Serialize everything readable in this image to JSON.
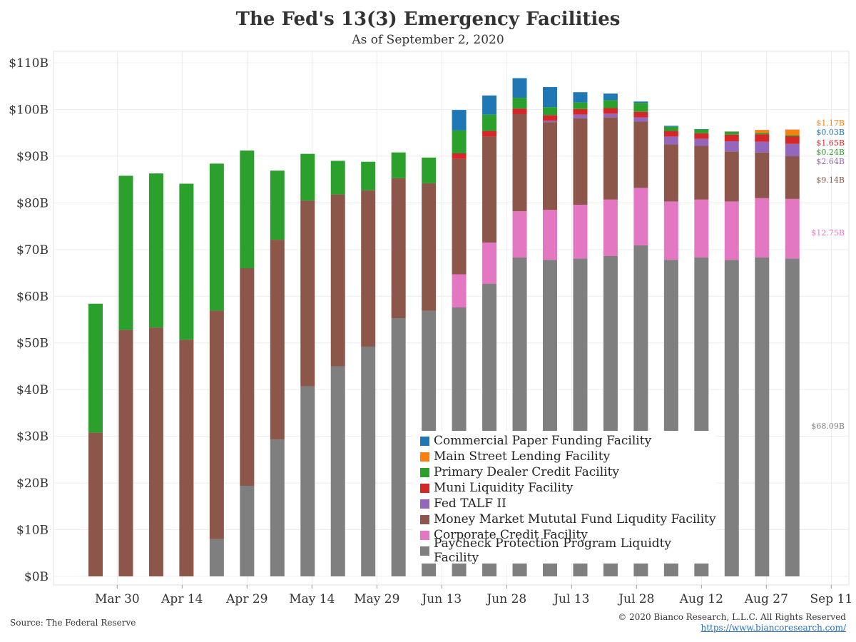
{
  "title": "The Fed's 13(3) Emergency Facilities",
  "subtitle": "As of September 2, 2020",
  "source": "Source: The Federal Reserve",
  "copyright": "© 2020 Bianco Research, L.L.C. All Rights Reserved",
  "url": "https://www.biancoresearch.com/",
  "chart_data": {
    "type": "bar",
    "stacked": true,
    "title": "The Fed's 13(3) Emergency Facilities",
    "subtitle": "As of September 2, 2020",
    "xlabel": "",
    "ylabel": "",
    "ylim": [
      0,
      110
    ],
    "y_ticks": [
      "$0B",
      "$10B",
      "$20B",
      "$30B",
      "$40B",
      "$50B",
      "$60B",
      "$70B",
      "$80B",
      "$90B",
      "$100B",
      "$110B"
    ],
    "x_ticks": [
      "Mar 30",
      "Apr 14",
      "Apr 29",
      "May 14",
      "May 29",
      "Jun 13",
      "Jun 28",
      "Jul 13",
      "Jul 28",
      "Aug 12",
      "Aug 27",
      "Sep 11"
    ],
    "grid": true,
    "legend_position": "bottom-right",
    "categories": [
      "Mar 25",
      "Apr 1",
      "Apr 8",
      "Apr 15",
      "Apr 22",
      "Apr 29",
      "May 6",
      "May 13",
      "May 20",
      "May 27",
      "Jun 3",
      "Jun 10",
      "Jun 17",
      "Jun 24",
      "Jul 1",
      "Jul 8",
      "Jul 15",
      "Jul 22",
      "Jul 29",
      "Aug 5",
      "Aug 12",
      "Aug 19",
      "Aug 26",
      "Sep 2"
    ],
    "series": [
      {
        "name": "Paycheck Protection Program Liquidty Facility",
        "color": "#7f7f7f",
        "values": [
          0,
          0,
          0,
          0,
          8,
          19.4,
          29.3,
          40.7,
          45,
          49.2,
          55.3,
          56.9,
          57.6,
          62.7,
          68.3,
          67.8,
          68.1,
          68.6,
          70.9,
          67.8,
          68.3,
          67.8,
          68.3,
          68.09
        ]
      },
      {
        "name": "Corporate Credit Facility",
        "color": "#e377c2",
        "values": [
          0,
          0,
          0,
          0,
          0,
          0,
          0,
          0,
          0,
          0,
          0,
          0,
          7.1,
          8.8,
          9.9,
          10.7,
          11.5,
          12.1,
          12.3,
          12.5,
          12.4,
          12.5,
          12.7,
          12.75
        ]
      },
      {
        "name": "Money Market Mututal Fund Liqudity Facility",
        "color": "#8c564b",
        "values": [
          30.8,
          52.8,
          53.3,
          50.7,
          48.9,
          46.6,
          42.8,
          39.8,
          36.8,
          33.5,
          30,
          27.3,
          24.7,
          22.7,
          20.8,
          18.8,
          18.5,
          17.6,
          14.2,
          12.2,
          11.5,
          10.7,
          9.8,
          9.14
        ]
      },
      {
        "name": "Fed TALF II",
        "color": "#9467bd",
        "values": [
          0,
          0,
          0,
          0,
          0,
          0,
          0,
          0,
          0,
          0,
          0,
          0,
          0,
          0,
          0,
          0.3,
          0.8,
          0.8,
          0.9,
          1.7,
          1.5,
          2.2,
          2.3,
          2.64
        ]
      },
      {
        "name": "Muni Liquidity Facility",
        "color": "#d62728",
        "values": [
          0,
          0,
          0,
          0,
          0,
          0,
          0,
          0,
          0,
          0,
          0,
          0,
          1.2,
          1.2,
          1.2,
          1.2,
          1.2,
          1.2,
          1.2,
          1.2,
          1.2,
          1.4,
          1.6,
          1.65
        ]
      },
      {
        "name": "Primary Dealer Credit Facility",
        "color": "#2ca02c",
        "values": [
          27.6,
          33,
          33,
          33.4,
          31.5,
          25.2,
          14.8,
          10,
          7.2,
          6.1,
          5.5,
          5.5,
          4.9,
          3.5,
          2.3,
          1.7,
          1.4,
          1.7,
          1.9,
          0.9,
          0.8,
          0.6,
          0.3,
          0.24
        ]
      },
      {
        "name": "Main Street Lending Facility",
        "color": "#ff7f0e",
        "values": [
          0,
          0,
          0,
          0,
          0,
          0,
          0,
          0,
          0,
          0,
          0,
          0,
          0,
          0,
          0,
          0,
          0,
          0,
          0,
          0,
          0,
          0.05,
          0.6,
          1.17
        ]
      },
      {
        "name": "Commercial Paper Funding Facility",
        "color": "#1f77b4",
        "values": [
          0,
          0,
          0,
          0,
          0,
          0,
          0,
          0,
          0,
          0,
          0,
          0,
          4.4,
          4.1,
          4.2,
          4.3,
          2.2,
          1.4,
          0.3,
          0.2,
          0.1,
          0.05,
          0.03,
          0.03
        ]
      }
    ],
    "end_labels": [
      {
        "text": "$1.17B",
        "color": "#ff7f0e",
        "value": 1.17
      },
      {
        "text": "$0.03B",
        "color": "#1f77b4",
        "value": 0.03
      },
      {
        "text": "$1.65B",
        "color": "#d62728",
        "value": 1.65
      },
      {
        "text": "$0.24B",
        "color": "#2ca02c",
        "value": 0.24
      },
      {
        "text": "$2.64B",
        "color": "#9467bd",
        "value": 2.64
      },
      {
        "text": "$9.14B",
        "color": "#8c564b",
        "value": 9.14
      },
      {
        "text": "$12.75B",
        "color": "#e377c2",
        "value": 12.75
      },
      {
        "text": "$68.09B",
        "color": "#7f7f7f",
        "value": 68.09
      }
    ]
  },
  "legend": [
    {
      "label": "Commercial Paper Funding Facility",
      "color": "#1f77b4"
    },
    {
      "label": "Main Street Lending Facility",
      "color": "#ff7f0e"
    },
    {
      "label": "Primary Dealer Credit Facility",
      "color": "#2ca02c"
    },
    {
      "label": "Muni Liquidity Facility",
      "color": "#d62728"
    },
    {
      "label": "Fed TALF II",
      "color": "#9467bd"
    },
    {
      "label": "Money Market Mututal Fund Liqudity Facility",
      "color": "#8c564b"
    },
    {
      "label": "Corporate Credit Facility",
      "color": "#e377c2"
    },
    {
      "label": "Paycheck Protection Program Liquidty Facility",
      "color": "#7f7f7f"
    }
  ]
}
